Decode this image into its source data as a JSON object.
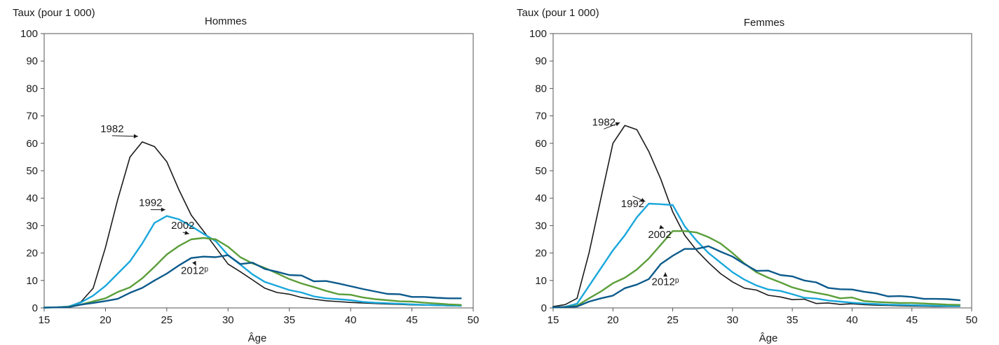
{
  "chart_data": [
    {
      "type": "line",
      "title": "Hommes",
      "ylabel": "Taux (pour 1 000)",
      "xlabel": "Âge",
      "xlim": [
        15,
        50
      ],
      "ylim": [
        0,
        100
      ],
      "xticks": [
        "15",
        "20",
        "25",
        "30",
        "35",
        "40",
        "45",
        "50"
      ],
      "yticks": [
        "0",
        "10",
        "20",
        "30",
        "40",
        "50",
        "60",
        "70",
        "80",
        "90",
        "100"
      ],
      "grid": false,
      "x": [
        15,
        16,
        17,
        18,
        19,
        20,
        21,
        22,
        23,
        24,
        25,
        26,
        27,
        28,
        29,
        30,
        31,
        32,
        33,
        34,
        35,
        36,
        37,
        38,
        39,
        40,
        41,
        42,
        43,
        44,
        45,
        46,
        47,
        48,
        49
      ],
      "series": [
        {
          "name": "1982",
          "color": "#1a1a1a",
          "values": [
            0.1,
            0.2,
            0.5,
            2.2,
            7.2,
            22,
            39.5,
            55,
            60.5,
            58.8,
            53.3,
            43,
            33.8,
            28,
            22,
            16,
            13.2,
            10.2,
            7.2,
            5.6,
            5,
            3.8,
            3.2,
            2.6,
            2.3,
            2,
            1.8,
            1.6,
            1.4,
            1.3,
            1.1,
            1,
            0.9,
            0.8,
            0.7
          ]
        },
        {
          "name": "1992",
          "color": "#1aa7dc",
          "values": [
            0.1,
            0.2,
            0.5,
            2,
            4.5,
            8,
            12.5,
            17,
            23.5,
            31,
            33.5,
            32.3,
            29.8,
            27,
            24.3,
            19.2,
            15.8,
            12.2,
            9.5,
            8,
            6.5,
            5.6,
            4.2,
            3.5,
            3.2,
            2.8,
            2.2,
            1.9,
            1.7,
            1.5,
            1.3,
            1.1,
            1,
            0.9,
            0.8
          ]
        },
        {
          "name": "2002",
          "color": "#5b9e3a",
          "values": [
            0.1,
            0.2,
            0.4,
            1.2,
            2.4,
            3.5,
            5.8,
            7.5,
            10.8,
            15,
            19.5,
            22.6,
            25,
            25.5,
            25,
            22.3,
            18.5,
            16.2,
            14.6,
            12.6,
            10.5,
            8.9,
            7.6,
            6.2,
            5,
            4.8,
            3.8,
            3.2,
            2.8,
            2.4,
            2.3,
            1.9,
            1.6,
            1.3,
            1.1
          ]
        },
        {
          "name": "2012ᵖ",
          "color": "#0d5b8c",
          "values": [
            0.1,
            0.2,
            0.3,
            1.2,
            1.8,
            2.5,
            3.3,
            5.5,
            7.3,
            10,
            12.5,
            15.5,
            18.2,
            18.7,
            18.5,
            19.2,
            16,
            16.5,
            14.2,
            13.2,
            12,
            11.8,
            9.7,
            9.8,
            8.9,
            7.9,
            6.9,
            6,
            5.1,
            5,
            4,
            4,
            3.7,
            3.5,
            3.5
          ]
        }
      ],
      "annotations": [
        {
          "text": "1982",
          "x": 23,
          "y": 60.5
        },
        {
          "text": "1992",
          "x": 25,
          "y": 33.5
        },
        {
          "text": "2002",
          "x": 27,
          "y": 25
        },
        {
          "text": "2012ᵖ",
          "x": 27.5,
          "y": 18.5
        }
      ]
    },
    {
      "type": "line",
      "title": "Femmes",
      "ylabel": "Taux (pour 1 000)",
      "xlabel": "Âge",
      "xlim": [
        15,
        50
      ],
      "ylim": [
        0,
        100
      ],
      "xticks": [
        "15",
        "20",
        "25",
        "30",
        "35",
        "40",
        "45",
        "50"
      ],
      "yticks": [
        "0",
        "10",
        "20",
        "30",
        "40",
        "50",
        "60",
        "70",
        "80",
        "90",
        "100"
      ],
      "grid": false,
      "x": [
        15,
        16,
        17,
        18,
        19,
        20,
        21,
        22,
        23,
        24,
        25,
        26,
        27,
        28,
        29,
        30,
        31,
        32,
        33,
        34,
        35,
        36,
        37,
        38,
        39,
        40,
        41,
        42,
        43,
        44,
        45,
        46,
        47,
        48,
        49
      ],
      "series": [
        {
          "name": "1982",
          "color": "#1a1a1a",
          "values": [
            0.5,
            1.2,
            3.5,
            20,
            40,
            60,
            66.5,
            65,
            57,
            47,
            35,
            26.5,
            21,
            16.5,
            12.5,
            9.5,
            7.2,
            6.5,
            4.6,
            4,
            3,
            3.2,
            1.6,
            1.8,
            1.3,
            1.5,
            1.2,
            1,
            0.9,
            0.8,
            0.7,
            0.6,
            0.5,
            0.5,
            0.5
          ]
        },
        {
          "name": "1992",
          "color": "#1aa7dc",
          "values": [
            0.2,
            0.4,
            1.5,
            8,
            14.5,
            21,
            26.5,
            33,
            38,
            37.8,
            37.5,
            29.8,
            24.5,
            20,
            16.5,
            13,
            10.3,
            8.2,
            6.7,
            6.2,
            5,
            3.7,
            3.4,
            2.7,
            2.3,
            1.9,
            1.6,
            1.4,
            1.2,
            1.1,
            1,
            0.9,
            0.8,
            0.7,
            0.7
          ]
        },
        {
          "name": "2002",
          "color": "#5b9e3a",
          "values": [
            0.2,
            0.3,
            0.8,
            3.5,
            6,
            9,
            11,
            14,
            18,
            23,
            28,
            28,
            27.5,
            25.8,
            23.5,
            20,
            16.2,
            13,
            11,
            9.3,
            7.5,
            6.3,
            5.5,
            4.7,
            3.5,
            3.8,
            2.5,
            2.2,
            2,
            1.8,
            1.8,
            1.6,
            1.4,
            1.2,
            1.1
          ]
        },
        {
          "name": "2012ᵖ",
          "color": "#0d5b8c",
          "values": [
            0.2,
            0.3,
            0.5,
            2.3,
            3.5,
            4.5,
            7.2,
            8.5,
            10.5,
            16,
            19,
            21.5,
            21.5,
            22.5,
            20.5,
            18.7,
            16,
            13.5,
            13.6,
            12,
            11.5,
            10,
            9.3,
            7.3,
            6.8,
            6.7,
            5.9,
            5.3,
            4.2,
            4.3,
            4,
            3.3,
            3.3,
            3.2,
            2.8
          ]
        }
      ],
      "annotations": [
        {
          "text": "1982",
          "x": 21,
          "y": 66
        },
        {
          "text": "1992",
          "x": 23,
          "y": 38
        },
        {
          "text": "2002",
          "x": 24.5,
          "y": 28
        },
        {
          "text": "2012ᵖ",
          "x": 24.5,
          "y": 16
        }
      ]
    }
  ]
}
